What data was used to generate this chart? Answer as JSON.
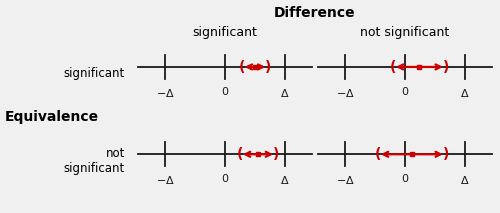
{
  "title": "Difference",
  "col_labels": [
    "significant",
    "not significant"
  ],
  "row_label": "Equivalence",
  "row_sublabels": [
    "significant",
    "not\nsignificant"
  ],
  "bg_color": "#b8b8b8",
  "outer_bg": "#f0f0f0",
  "line_color": "#1a1a1a",
  "red_color": "#cc0000",
  "delta": 1.0,
  "xlim": [
    -1.5,
    1.5
  ],
  "title_fontsize": 10,
  "col_label_fontsize": 9,
  "row_label_fontsize": 10,
  "sublabel_fontsize": 8.5,
  "tick_fontsize": 8,
  "ci_params": [
    {
      "ci_l": 0.28,
      "ci_r": 0.72,
      "pt": 0.5
    },
    {
      "ci_l": -0.2,
      "ci_r": 0.68,
      "pt": 0.24
    },
    {
      "ci_l": 0.25,
      "ci_r": 0.85,
      "pt": 0.55
    },
    {
      "ci_l": -0.45,
      "ci_r": 0.68,
      "pt": 0.12
    }
  ]
}
